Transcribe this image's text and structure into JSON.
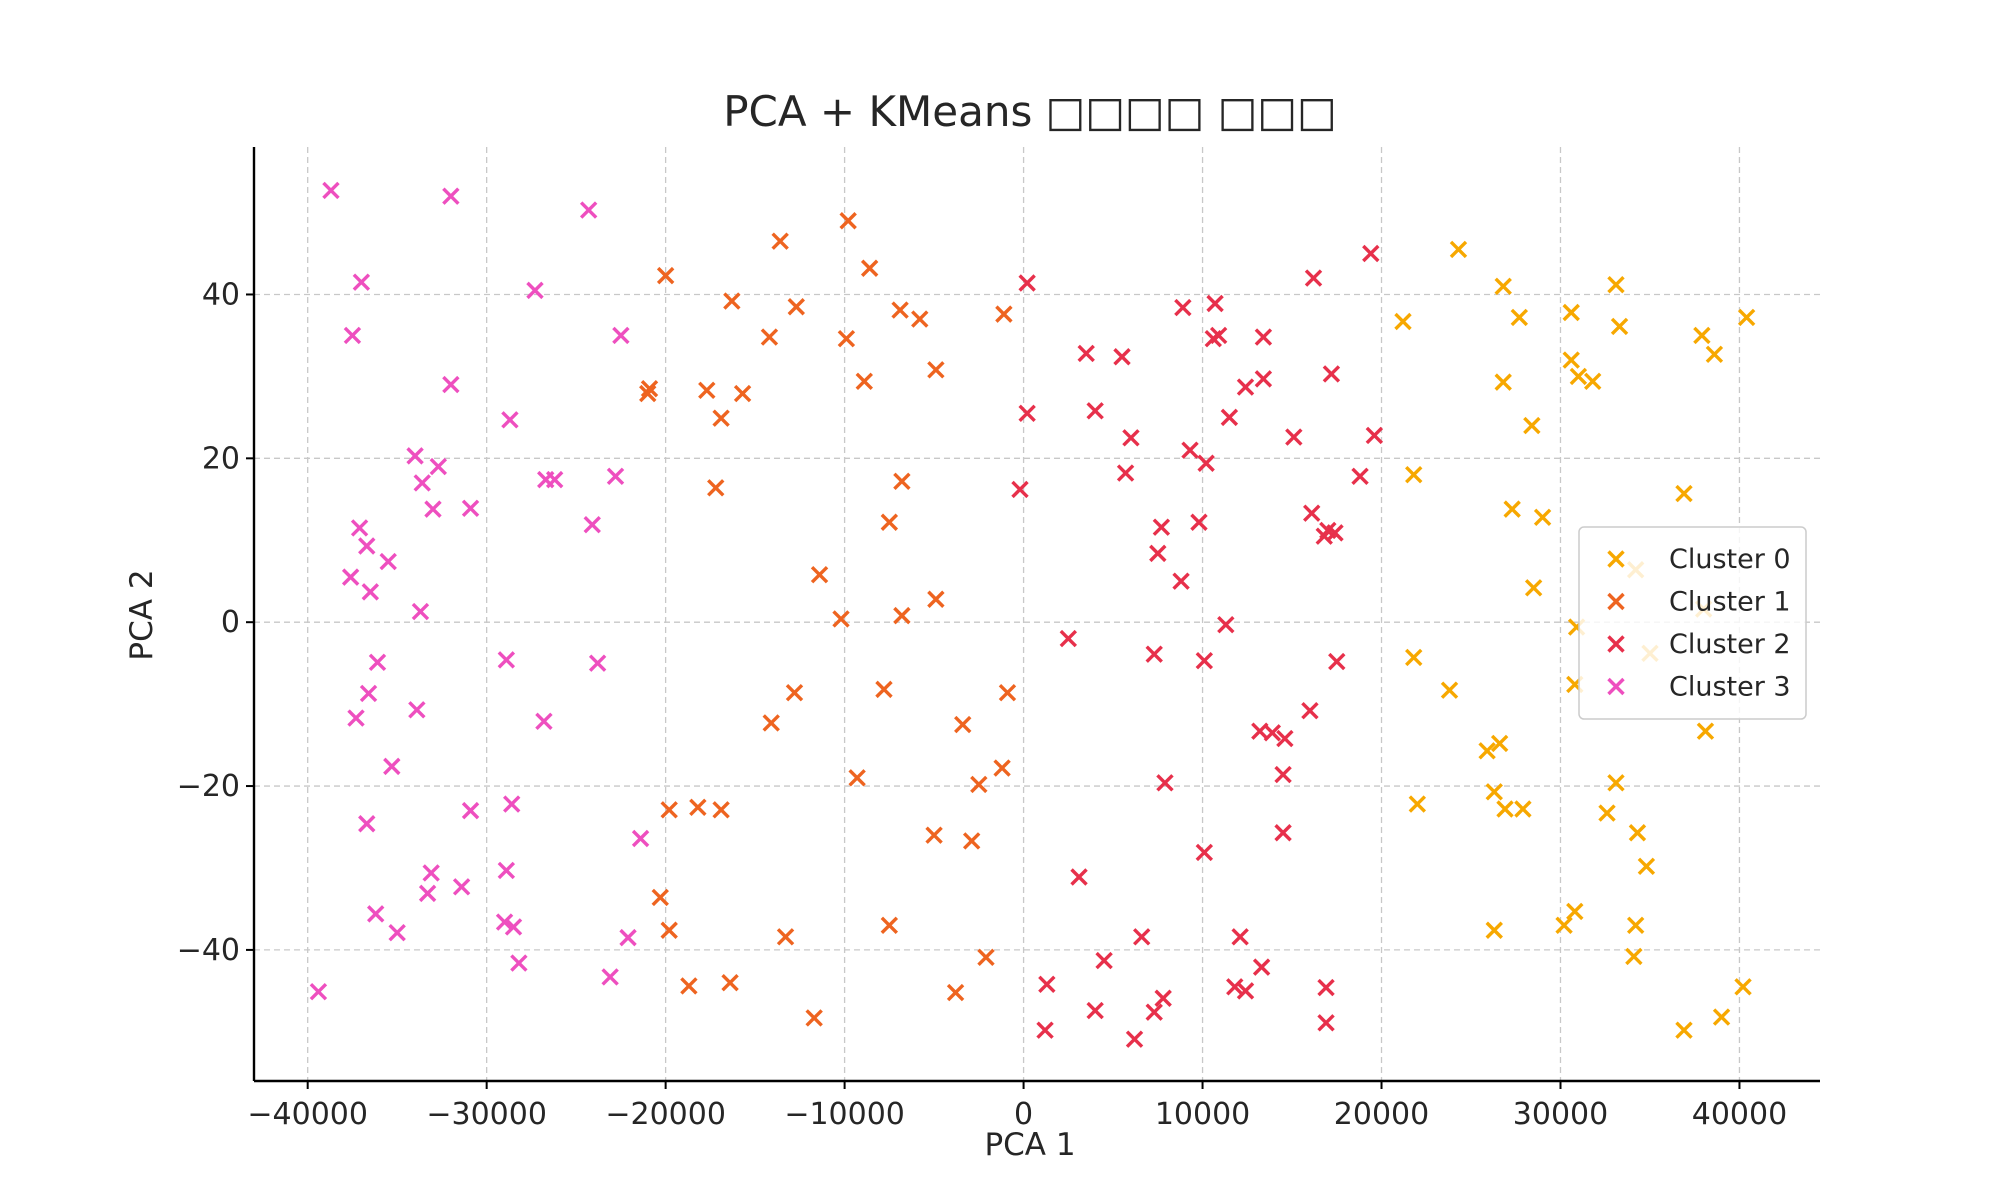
{
  "chart_data": {
    "type": "scatter",
    "title": "PCA + KMeans □□□□ □□□",
    "xlabel": "PCA 1",
    "ylabel": "PCA 2",
    "xlim": [
      -43000,
      44500
    ],
    "ylim": [
      -56,
      58
    ],
    "x_ticks": [
      -40000,
      -30000,
      -20000,
      -10000,
      0,
      10000,
      20000,
      30000,
      40000
    ],
    "x_tick_labels": [
      "−40000",
      "−30000",
      "−20000",
      "−10000",
      "0",
      "10000",
      "20000",
      "30000",
      "40000"
    ],
    "y_ticks": [
      -40,
      -20,
      0,
      20,
      40
    ],
    "y_tick_labels": [
      "−40",
      "−20",
      "0",
      "20",
      "40"
    ],
    "grid": true,
    "legend_position": "center-right",
    "marker": "x",
    "series": [
      {
        "name": "Cluster 0",
        "color": "#f7a800",
        "points": [
          [
            24300,
            45.5
          ],
          [
            26800,
            41
          ],
          [
            33100,
            41.2
          ],
          [
            21200,
            36.7
          ],
          [
            27700,
            37.2
          ],
          [
            30600,
            37.8
          ],
          [
            33300,
            36.1
          ],
          [
            40400,
            37.2
          ],
          [
            26800,
            29.3
          ],
          [
            30600,
            32
          ],
          [
            31000,
            30
          ],
          [
            31800,
            29.4
          ],
          [
            37900,
            35
          ],
          [
            38600,
            32.7
          ],
          [
            28400,
            24
          ],
          [
            21800,
            18
          ],
          [
            36900,
            15.7
          ],
          [
            27300,
            13.8
          ],
          [
            29000,
            12.8
          ],
          [
            34200,
            6.4
          ],
          [
            28500,
            4.2
          ],
          [
            30900,
            -0.6
          ],
          [
            38000,
            1.6
          ],
          [
            21800,
            -4.3
          ],
          [
            23800,
            -8.3
          ],
          [
            30800,
            -7.6
          ],
          [
            35000,
            -3.8
          ],
          [
            38100,
            -13.3
          ],
          [
            25900,
            -15.7
          ],
          [
            26600,
            -14.8
          ],
          [
            26300,
            -20.7
          ],
          [
            26900,
            -22.8
          ],
          [
            27900,
            -22.8
          ],
          [
            33100,
            -19.6
          ],
          [
            32600,
            -23.3
          ],
          [
            34300,
            -25.7
          ],
          [
            34800,
            -29.8
          ],
          [
            22000,
            -22.2
          ],
          [
            26300,
            -37.6
          ],
          [
            30200,
            -37
          ],
          [
            30800,
            -35.3
          ],
          [
            34200,
            -37
          ],
          [
            34100,
            -40.8
          ],
          [
            36900,
            -49.8
          ],
          [
            39000,
            -48.2
          ],
          [
            40200,
            -44.5
          ]
        ]
      },
      {
        "name": "Cluster 1",
        "color": "#ee6420",
        "points": [
          [
            -9800,
            49
          ],
          [
            -13600,
            46.5
          ],
          [
            -8600,
            43.2
          ],
          [
            -20000,
            42.3
          ],
          [
            -16300,
            39.2
          ],
          [
            -12700,
            38.5
          ],
          [
            -6900,
            38.1
          ],
          [
            -1100,
            37.6
          ],
          [
            -5800,
            37
          ],
          [
            -14200,
            34.8
          ],
          [
            -9900,
            34.6
          ],
          [
            -20900,
            28.5
          ],
          [
            -21000,
            27.9
          ],
          [
            -17700,
            28.3
          ],
          [
            -15700,
            27.9
          ],
          [
            -8900,
            29.4
          ],
          [
            -4900,
            30.8
          ],
          [
            -16900,
            24.9
          ],
          [
            -17200,
            16.4
          ],
          [
            -6800,
            17.2
          ],
          [
            -7500,
            12.2
          ],
          [
            -11400,
            5.8
          ],
          [
            -10200,
            0.4
          ],
          [
            -6800,
            0.8
          ],
          [
            -4900,
            2.8
          ],
          [
            -14100,
            -12.3
          ],
          [
            -12800,
            -8.6
          ],
          [
            -7800,
            -8.2
          ],
          [
            -3400,
            -12.5
          ],
          [
            -900,
            -8.6
          ],
          [
            -9300,
            -19
          ],
          [
            -2500,
            -19.8
          ],
          [
            -1200,
            -17.8
          ],
          [
            -19800,
            -22.9
          ],
          [
            -18200,
            -22.6
          ],
          [
            -16900,
            -22.9
          ],
          [
            -5000,
            -26
          ],
          [
            -2900,
            -26.7
          ],
          [
            -20300,
            -33.6
          ],
          [
            -19800,
            -37.6
          ],
          [
            -13300,
            -38.4
          ],
          [
            -7500,
            -37
          ],
          [
            -2100,
            -40.9
          ],
          [
            -3800,
            -45.2
          ],
          [
            -18700,
            -44.4
          ],
          [
            -16400,
            -44
          ],
          [
            -11700,
            -48.3
          ]
        ]
      },
      {
        "name": "Cluster 2",
        "color": "#e7304b",
        "points": [
          [
            19400,
            45
          ],
          [
            16200,
            42
          ],
          [
            200,
            41.4
          ],
          [
            8900,
            38.4
          ],
          [
            10700,
            38.9
          ],
          [
            10600,
            34.6
          ],
          [
            10900,
            35
          ],
          [
            13400,
            34.8
          ],
          [
            3500,
            32.8
          ],
          [
            5500,
            32.4
          ],
          [
            13400,
            29.7
          ],
          [
            12400,
            28.7
          ],
          [
            17200,
            30.3
          ],
          [
            200,
            25.5
          ],
          [
            4000,
            25.8
          ],
          [
            11500,
            25
          ],
          [
            6000,
            22.5
          ],
          [
            15100,
            22.6
          ],
          [
            19600,
            22.8
          ],
          [
            9300,
            21
          ],
          [
            10200,
            19.4
          ],
          [
            5700,
            18.2
          ],
          [
            -200,
            16.2
          ],
          [
            18800,
            17.8
          ],
          [
            16100,
            13.3
          ],
          [
            7700,
            11.6
          ],
          [
            9800,
            12.2
          ],
          [
            16800,
            10.5
          ],
          [
            17000,
            11.2
          ],
          [
            17400,
            10.9
          ],
          [
            7500,
            8.4
          ],
          [
            8800,
            5
          ],
          [
            11300,
            -0.3
          ],
          [
            2500,
            -2
          ],
          [
            7300,
            -3.9
          ],
          [
            10100,
            -4.7
          ],
          [
            17500,
            -4.8
          ],
          [
            16000,
            -10.8
          ],
          [
            13200,
            -13.3
          ],
          [
            13900,
            -13.5
          ],
          [
            14600,
            -14.2
          ],
          [
            14500,
            -18.6
          ],
          [
            7900,
            -19.6
          ],
          [
            14500,
            -25.7
          ],
          [
            10100,
            -28.1
          ],
          [
            3100,
            -31.1
          ],
          [
            12100,
            -38.4
          ],
          [
            6600,
            -38.4
          ],
          [
            13300,
            -42.1
          ],
          [
            4500,
            -41.3
          ],
          [
            1300,
            -44.2
          ],
          [
            11800,
            -44.5
          ],
          [
            12400,
            -45
          ],
          [
            7800,
            -45.9
          ],
          [
            16900,
            -44.6
          ],
          [
            7300,
            -47.6
          ],
          [
            4000,
            -47.4
          ],
          [
            1200,
            -49.8
          ],
          [
            6200,
            -50.9
          ],
          [
            16900,
            -48.9
          ]
        ]
      },
      {
        "name": "Cluster 3",
        "color": "#ee4fbf",
        "points": [
          [
            -38700,
            52.7
          ],
          [
            -32000,
            52
          ],
          [
            -24300,
            50.3
          ],
          [
            -37000,
            41.5
          ],
          [
            -27300,
            40.5
          ],
          [
            -37500,
            35
          ],
          [
            -22500,
            35
          ],
          [
            -32000,
            29
          ],
          [
            -28700,
            24.7
          ],
          [
            -34000,
            20.3
          ],
          [
            -32700,
            19
          ],
          [
            -33600,
            17
          ],
          [
            -26700,
            17.4
          ],
          [
            -26200,
            17.4
          ],
          [
            -22800,
            17.8
          ],
          [
            -33000,
            13.8
          ],
          [
            -30900,
            13.9
          ],
          [
            -24100,
            11.9
          ],
          [
            -37100,
            11.5
          ],
          [
            -36700,
            9.3
          ],
          [
            -37600,
            5.5
          ],
          [
            -35500,
            7.4
          ],
          [
            -36500,
            3.7
          ],
          [
            -33700,
            1.3
          ],
          [
            -36100,
            -4.9
          ],
          [
            -36600,
            -8.7
          ],
          [
            -28900,
            -4.6
          ],
          [
            -23800,
            -5
          ],
          [
            -33900,
            -10.7
          ],
          [
            -37300,
            -11.7
          ],
          [
            -26800,
            -12.1
          ],
          [
            -35300,
            -17.6
          ],
          [
            -36700,
            -24.6
          ],
          [
            -30900,
            -23
          ],
          [
            -28600,
            -22.2
          ],
          [
            -21400,
            -26.4
          ],
          [
            -28900,
            -30.3
          ],
          [
            -33100,
            -30.6
          ],
          [
            -33300,
            -33.1
          ],
          [
            -31400,
            -32.3
          ],
          [
            -36200,
            -35.6
          ],
          [
            -35000,
            -37.9
          ],
          [
            -29000,
            -36.6
          ],
          [
            -28500,
            -37.2
          ],
          [
            -28200,
            -41.6
          ],
          [
            -22100,
            -38.5
          ],
          [
            -23100,
            -43.3
          ],
          [
            -39400,
            -45.1
          ]
        ]
      }
    ]
  }
}
